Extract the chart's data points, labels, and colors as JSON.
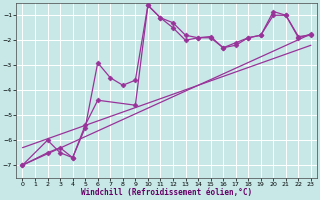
{
  "xlabel": "Windchill (Refroidissement éolien,°C)",
  "background_color": "#c8e8e8",
  "grid_color": "#aacccc",
  "line_color": "#993399",
  "xlim": [
    -0.5,
    23.5
  ],
  "ylim": [
    -7.5,
    -0.5
  ],
  "yticks": [
    -7,
    -6,
    -5,
    -4,
    -3,
    -2,
    -1
  ],
  "xticks": [
    0,
    1,
    2,
    3,
    4,
    5,
    6,
    7,
    8,
    9,
    10,
    11,
    12,
    13,
    14,
    15,
    16,
    17,
    18,
    19,
    20,
    21,
    22,
    23
  ],
  "series1_x": [
    0,
    2,
    3,
    4,
    5,
    6,
    7,
    8,
    9,
    10,
    11,
    12,
    13,
    14,
    15,
    16,
    17,
    18,
    19,
    20,
    21,
    22,
    23
  ],
  "series1_y": [
    -7.0,
    -6.0,
    -6.5,
    -6.7,
    -5.5,
    -2.9,
    -3.5,
    -3.8,
    -3.6,
    -0.6,
    -1.1,
    -1.3,
    -1.8,
    -1.9,
    -1.85,
    -2.3,
    -2.2,
    -1.9,
    -1.8,
    -1.0,
    -1.0,
    -1.85,
    -1.8
  ],
  "series2_x": [
    0,
    2,
    3,
    4,
    5,
    6,
    9,
    10,
    11,
    12,
    13,
    14,
    15,
    16,
    17,
    18,
    19,
    20,
    21,
    22,
    23
  ],
  "series2_y": [
    -7.0,
    -6.5,
    -6.3,
    -6.7,
    -5.4,
    -4.4,
    -4.6,
    -0.6,
    -1.1,
    -1.5,
    -2.0,
    -1.9,
    -1.9,
    -2.3,
    -2.1,
    -1.9,
    -1.8,
    -0.85,
    -1.0,
    -1.9,
    -1.75
  ],
  "line3_x": [
    0,
    23
  ],
  "line3_y": [
    -7.0,
    -1.75
  ],
  "line4_x": [
    0,
    23
  ],
  "line4_y": [
    -6.3,
    -2.2
  ]
}
